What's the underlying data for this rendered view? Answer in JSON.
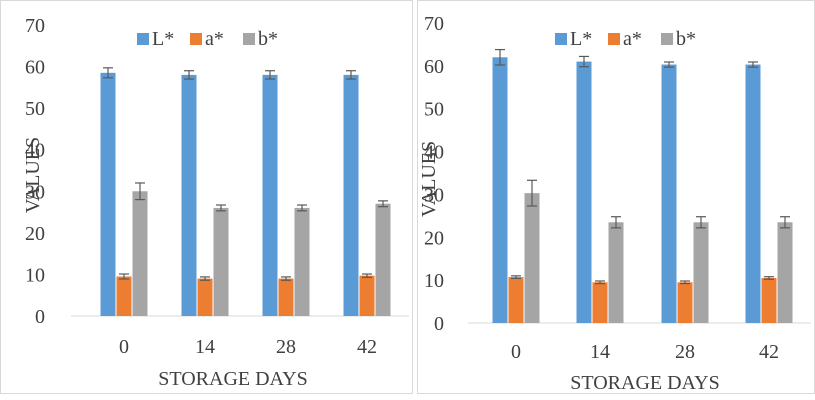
{
  "chart_data": [
    {
      "type": "bar",
      "categories": [
        "0",
        "14",
        "28",
        "42"
      ],
      "xlabel": "STORAGE DAYS",
      "ylabel": "VALUES",
      "ylim": [
        0,
        70
      ],
      "yticks": [
        "0",
        "10",
        "20",
        "30",
        "40",
        "50",
        "60",
        "70"
      ],
      "grid": false,
      "legend_position": "top",
      "series": [
        {
          "name": "L*",
          "color": "#5b9bd5",
          "values": [
            58.5,
            58.0,
            58.0,
            58.0
          ],
          "errors": [
            1.2,
            1.0,
            1.0,
            1.0
          ]
        },
        {
          "name": "a*",
          "color": "#ed7d31",
          "values": [
            9.5,
            9.0,
            9.0,
            9.7
          ],
          "errors": [
            0.6,
            0.4,
            0.4,
            0.4
          ]
        },
        {
          "name": "b*",
          "color": "#a5a5a5",
          "values": [
            30.0,
            26.0,
            26.0,
            27.0
          ],
          "errors": [
            2.0,
            0.7,
            0.7,
            0.7
          ]
        }
      ]
    },
    {
      "type": "bar",
      "categories": [
        "0",
        "14",
        "28",
        "42"
      ],
      "xlabel": "STORAGE DAYS",
      "ylabel": "VALUES",
      "ylim": [
        0,
        70
      ],
      "yticks": [
        "0",
        "10",
        "20",
        "30",
        "40",
        "50",
        "60",
        "70"
      ],
      "grid": false,
      "legend_position": "top",
      "series": [
        {
          "name": "L*",
          "color": "#5b9bd5",
          "values": [
            62.0,
            61.0,
            60.3,
            60.3
          ],
          "errors": [
            1.8,
            1.2,
            0.6,
            0.6
          ]
        },
        {
          "name": "a*",
          "color": "#ed7d31",
          "values": [
            10.7,
            9.5,
            9.5,
            10.5
          ],
          "errors": [
            0.3,
            0.3,
            0.3,
            0.3
          ]
        },
        {
          "name": "b*",
          "color": "#a5a5a5",
          "values": [
            30.3,
            23.5,
            23.5,
            23.5
          ],
          "errors": [
            3.0,
            1.3,
            1.3,
            1.3
          ]
        }
      ]
    }
  ]
}
